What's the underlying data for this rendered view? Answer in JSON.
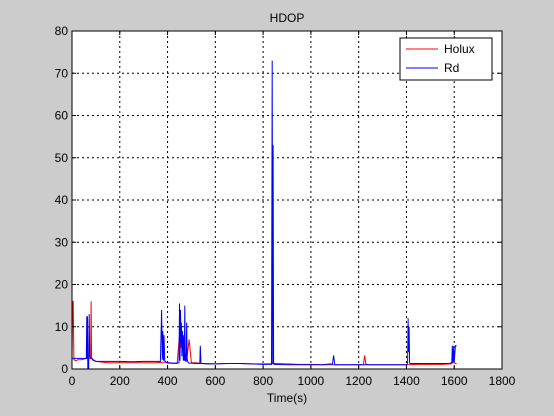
{
  "chart_data": {
    "type": "line",
    "title": "HDOP",
    "xlabel": "Time(s)",
    "ylabel": "",
    "xlim": [
      0,
      1800
    ],
    "ylim": [
      0,
      80
    ],
    "xticks": [
      0,
      200,
      400,
      600,
      800,
      1000,
      1200,
      1400,
      1600,
      1800
    ],
    "yticks": [
      0,
      10,
      20,
      30,
      40,
      50,
      60,
      70,
      80
    ],
    "grid": true,
    "grid_style": "dotted",
    "legend_position": "top-right",
    "series": [
      {
        "name": "Holux",
        "color": "#ff0000",
        "x": [
          0,
          3,
          5,
          8,
          10,
          14,
          18,
          25,
          40,
          60,
          78,
          80,
          82,
          84,
          86,
          90,
          95,
          100,
          150,
          200,
          250,
          300,
          350,
          380,
          395,
          400,
          440,
          450,
          455,
          460,
          480,
          490,
          500,
          520,
          540,
          560,
          600,
          650,
          700,
          750,
          800,
          830,
          845,
          850,
          900,
          950,
          1000,
          1050,
          1100,
          1150,
          1200,
          1220,
          1225,
          1230,
          1240,
          1300,
          1350,
          1400,
          1450,
          1500,
          1550,
          1580,
          1590,
          1595,
          1600,
          1605,
          1610
        ],
        "y": [
          2.2,
          16,
          16,
          2.2,
          2.2,
          2,
          2,
          2.2,
          2.2,
          2.5,
          2.5,
          16,
          2.5,
          2.3,
          2.3,
          2.2,
          2,
          1.8,
          1.5,
          1.5,
          1.5,
          1.5,
          1.5,
          1.6,
          1.6,
          1.4,
          1.3,
          8,
          5,
          7,
          2,
          7,
          1.5,
          1.5,
          1.3,
          1.3,
          1.2,
          1.3,
          1.3,
          1.2,
          1.2,
          1.2,
          1.3,
          1.3,
          1.2,
          1.1,
          1.1,
          1,
          1,
          1,
          1,
          1,
          3.2,
          1.2,
          1,
          1,
          1,
          1,
          1.1,
          1.1,
          1.1,
          1.2,
          1.2,
          1.8,
          1.5,
          1.3,
          1.3
        ]
      },
      {
        "name": "Rd",
        "color": "#0000ff",
        "x": [
          0,
          10,
          20,
          40,
          50,
          60,
          62,
          63,
          64,
          65,
          66,
          70,
          72,
          74,
          76,
          78,
          80,
          82,
          84,
          86,
          90,
          100,
          150,
          200,
          250,
          300,
          350,
          370,
          375,
          378,
          380,
          383,
          385,
          388,
          390,
          395,
          400,
          410,
          420,
          430,
          440,
          448,
          450,
          452,
          454,
          456,
          458,
          460,
          462,
          464,
          466,
          468,
          470,
          472,
          474,
          478,
          480,
          482,
          484,
          486,
          490,
          500,
          520,
          535,
          537,
          540,
          545,
          560,
          600,
          650,
          700,
          750,
          800,
          830,
          835,
          838,
          840,
          842,
          844,
          846,
          848,
          850,
          900,
          950,
          1000,
          1050,
          1080,
          1090,
          1095,
          1100,
          1150,
          1200,
          1250,
          1300,
          1350,
          1400,
          1405,
          1407,
          1409,
          1411,
          1413,
          1415,
          1420,
          1450,
          1500,
          1550,
          1580,
          1585,
          1590,
          1592,
          1595,
          1598,
          1600,
          1605,
          1610
        ],
        "y": [
          2.5,
          2.5,
          2.5,
          2.5,
          2.5,
          2.5,
          12.5,
          2.5,
          2.5,
          12.5,
          0.2,
          0.2,
          13,
          3,
          2.7,
          2.7,
          2.5,
          2.5,
          2.5,
          2.2,
          2,
          1.8,
          1.8,
          1.8,
          1.7,
          1.8,
          1.8,
          1.8,
          14,
          2.2,
          9,
          2,
          8,
          2,
          1.8,
          1.5,
          1.5,
          1.5,
          1.4,
          1.4,
          1.4,
          1.5,
          15.5,
          2,
          14,
          6,
          11,
          3,
          9,
          7,
          2,
          8,
          2,
          15,
          2,
          1.8,
          11,
          2.5,
          2,
          1.5,
          1.4,
          1.4,
          1.3,
          1.3,
          5.5,
          1.3,
          1.3,
          1.2,
          1.2,
          1.3,
          1.3,
          1.2,
          1.1,
          1.1,
          1.1,
          73,
          1.2,
          53,
          1.2,
          1.1,
          1.1,
          1.1,
          1,
          1,
          1,
          1,
          1.2,
          1.1,
          3.2,
          1,
          1,
          1,
          1,
          1,
          1,
          1,
          1.2,
          12,
          4,
          10,
          1.5,
          1.3,
          1.3,
          1.3,
          1.3,
          1.3,
          1.3,
          1.4,
          1.6,
          5.5,
          1.5,
          5.5,
          1.6,
          5.5,
          5.5
        ]
      }
    ]
  }
}
